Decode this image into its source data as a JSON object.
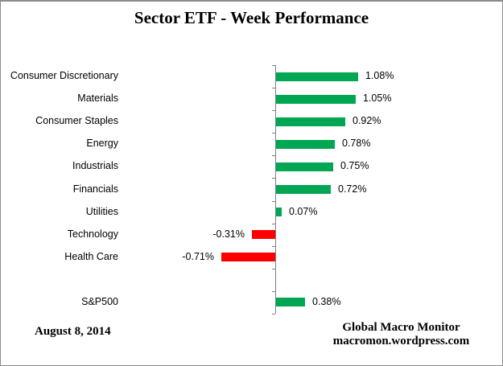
{
  "title": "Sector ETF - Week Performance",
  "footer": {
    "date": "August 8, 2014",
    "credit_line1": "Global Macro Monitor",
    "credit_line2": "macromon.wordpress.com"
  },
  "chart_data": {
    "type": "bar",
    "orientation": "horizontal",
    "title": "Sector ETF - Week Performance",
    "categories": [
      "Consumer Discretionary",
      "Materials",
      "Consumer Staples",
      "Energy",
      "Industrials",
      "Financials",
      "Utilities",
      "Technology",
      "Health Care",
      "",
      "S&P500"
    ],
    "values": [
      1.08,
      1.05,
      0.92,
      0.78,
      0.75,
      0.72,
      0.07,
      -0.31,
      -0.71,
      null,
      0.38
    ],
    "value_labels": [
      "1.08%",
      "1.05%",
      "0.92%",
      "0.78%",
      "0.75%",
      "0.72%",
      "0.07%",
      "-0.31%",
      "-0.71%",
      "",
      "0.38%"
    ],
    "unit": "%",
    "positive_color": "#00A651",
    "negative_color": "#FF0000",
    "axis_color": "#7f7f7f",
    "baseline": 0,
    "grid": false,
    "legend": false,
    "notes": "value labels placed at bar ends; blank spacer row between Health Care and S&P500"
  }
}
